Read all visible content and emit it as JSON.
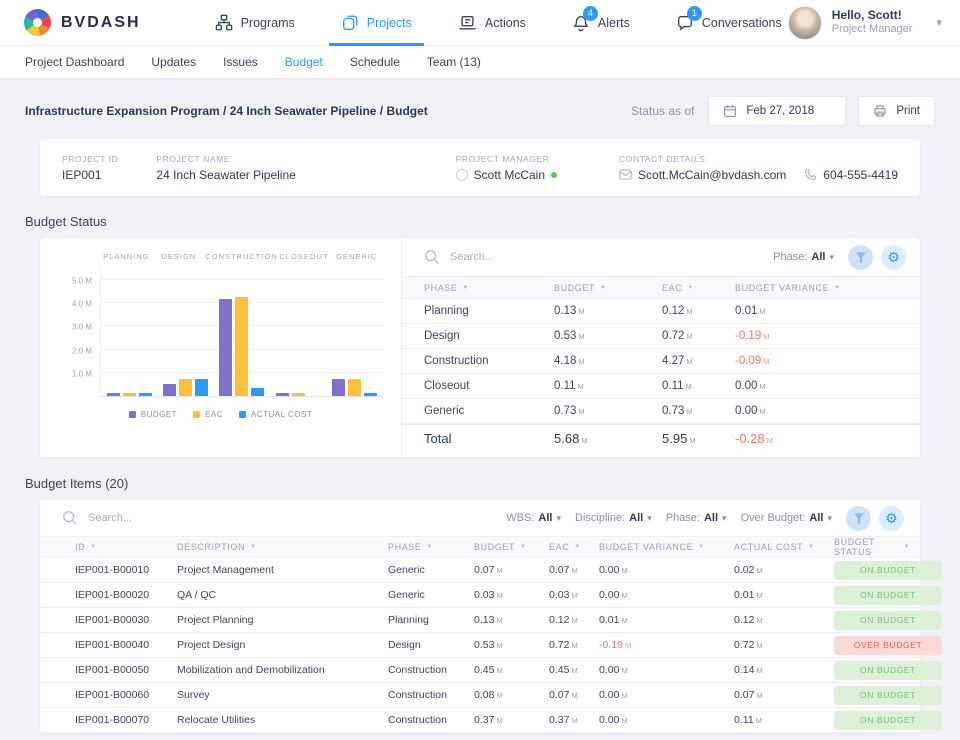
{
  "brand": {
    "name": "BVDASH"
  },
  "icons": {
    "chevron_down": "▾",
    "sort": "▼",
    "gear": "⚙"
  },
  "colors": {
    "accent": "#2e9bf3",
    "negative": "#f4756c",
    "bar_budget": "#8172c9",
    "bar_eac": "#fbc13c",
    "bar_actual": "#2e9bf3",
    "badge_on_bg": "#dcf0d8",
    "badge_on_text": "#72c175",
    "badge_over_bg": "#fbd9d5",
    "badge_over_text": "#ee5c55"
  },
  "top_nav": {
    "programs": {
      "label": "Programs"
    },
    "projects": {
      "label": "Projects"
    },
    "actions": {
      "label": "Actions"
    },
    "alerts": {
      "label": "Alerts",
      "badge": "4"
    },
    "conversations": {
      "label": "Conversations",
      "badge": "1"
    },
    "user": {
      "greeting": "Hello, Scott!",
      "role": "Project Manager"
    }
  },
  "sub_nav": {
    "active_index": 3,
    "items": [
      {
        "label": "Project Dashboard"
      },
      {
        "label": "Updates"
      },
      {
        "label": "Issues"
      },
      {
        "label": "Budget"
      },
      {
        "label": "Schedule"
      },
      {
        "label": "Team (13)"
      }
    ]
  },
  "toolbar": {
    "breadcrumb": "Infrastructure Expansion Program / 24 Inch Seawater Pipeline / Budget",
    "status_as_of_label": "Status as of",
    "date": "Feb 27, 2018",
    "print_label": "Print"
  },
  "project_card": {
    "id_label": "PROJECT ID",
    "id": "IEP001",
    "name_label": "PROJECT NAME",
    "name": "24 Inch Seawater Pipeline",
    "manager_label": "PROJECT MANAGER",
    "manager": "Scott McCain",
    "contact_label": "CONTACT DETAILS",
    "email": "Scott.McCain@bvdash.com",
    "phone": "604-555-4419"
  },
  "budget_status": {
    "title": "Budget Status",
    "search_placeholder": "Search...",
    "filters": [
      {
        "label": "Phase:",
        "value": "All"
      }
    ],
    "table": {
      "columns": [
        "PHASE",
        "BUDGET",
        "EAC",
        "BUDGET VARIANCE"
      ],
      "rows": [
        {
          "phase": "Planning",
          "budget": "0.13 M",
          "eac": "0.12 M",
          "variance": "0.01 M"
        },
        {
          "phase": "Design",
          "budget": "0.53 M",
          "eac": "0.72 M",
          "variance": "-0.19 M"
        },
        {
          "phase": "Construction",
          "budget": "4.18 M",
          "eac": "4.27 M",
          "variance": "-0.09 M"
        },
        {
          "phase": "Closeout",
          "budget": "0.11 M",
          "eac": "0.11 M",
          "variance": "0.00 M"
        },
        {
          "phase": "Generic",
          "budget": "0.73 M",
          "eac": "0.73 M",
          "variance": "0.00 M"
        }
      ],
      "total": {
        "label": "Total",
        "budget": "5.68 M",
        "eac": "5.95 M",
        "variance": "-0.28 M"
      }
    }
  },
  "chart_data": {
    "type": "bar",
    "title": "Budget Status",
    "categories": [
      "PLANNING",
      "DESIGN",
      "CONSTRUCTION",
      "CLOSEOUT",
      "GENERIC"
    ],
    "series": [
      {
        "name": "BUDGET",
        "color": "#8172c9",
        "values": [
          0.13,
          0.53,
          4.18,
          0.11,
          0.73
        ]
      },
      {
        "name": "EAC",
        "color": "#fbc13c",
        "values": [
          0.12,
          0.72,
          4.27,
          0.11,
          0.73
        ]
      },
      {
        "name": "ACTUAL COST",
        "color": "#2e9bf3",
        "values": [
          0.12,
          0.72,
          0.35,
          0.0,
          0.14
        ]
      }
    ],
    "y_axis": [
      {
        "label": "5.0 M",
        "value": 5
      },
      {
        "label": "4.0 M",
        "value": 4
      },
      {
        "label": "3.0 M",
        "value": 3
      },
      {
        "label": "2.0 M",
        "value": 2
      },
      {
        "label": "1.0 M",
        "value": 1
      }
    ],
    "ylim": [
      0,
      5.6
    ],
    "unit": "M",
    "grid": true,
    "legend_position": "bottom"
  },
  "budget_items": {
    "title": "Budget Items (20)",
    "search_placeholder": "Search...",
    "filters": [
      {
        "label": "WBS:",
        "value": "All"
      },
      {
        "label": "Discipline:",
        "value": "All"
      },
      {
        "label": "Phase:",
        "value": "All"
      },
      {
        "label": "Over Budget:",
        "value": "All"
      }
    ],
    "table": {
      "columns": [
        "ID",
        "DESCRIPTION",
        "PHASE",
        "BUDGET",
        "EAC",
        "BUDGET VARIANCE",
        "ACTUAL COST",
        "BUDGET STATUS"
      ],
      "rows": [
        {
          "id": "IEP001-B00010",
          "description": "Project Management",
          "phase": "Generic",
          "budget": "0.07 M",
          "eac": "0.07 M",
          "variance": "0.00 M",
          "actual": "0.02 M",
          "status": "ON BUDGET"
        },
        {
          "id": "IEP001-B00020",
          "description": "QA / QC",
          "phase": "Generic",
          "budget": "0.03 M",
          "eac": "0.03 M",
          "variance": "0.00 M",
          "actual": "0.01 M",
          "status": "ON BUDGET"
        },
        {
          "id": "IEP001-B00030",
          "description": "Project Planning",
          "phase": "Planning",
          "budget": "0.13 M",
          "eac": "0.12 M",
          "variance": "0.01 M",
          "actual": "0.12 M",
          "status": "ON BUDGET"
        },
        {
          "id": "IEP001-B00040",
          "description": "Project Design",
          "phase": "Design",
          "budget": "0.53 M",
          "eac": "0.72 M",
          "variance": "-0.19 M",
          "actual": "0.72 M",
          "status": "OVER BUDGET"
        },
        {
          "id": "IEP001-B00050",
          "description": "Mobilization and Demobilization",
          "phase": "Construction",
          "budget": "0.45 M",
          "eac": "0.45 M",
          "variance": "0.00 M",
          "actual": "0.14 M",
          "status": "ON BUDGET"
        },
        {
          "id": "IEP001-B00060",
          "description": "Survey",
          "phase": "Construction",
          "budget": "0.08 M",
          "eac": "0.07 M",
          "variance": "0.00 M",
          "actual": "0.07 M",
          "status": "ON BUDGET"
        },
        {
          "id": "IEP001-B00070",
          "description": "Relocate Utilities",
          "phase": "Construction",
          "budget": "0.37 M",
          "eac": "0.37 M",
          "variance": "0.00 M",
          "actual": "0.11 M",
          "status": "ON BUDGET"
        }
      ]
    }
  }
}
